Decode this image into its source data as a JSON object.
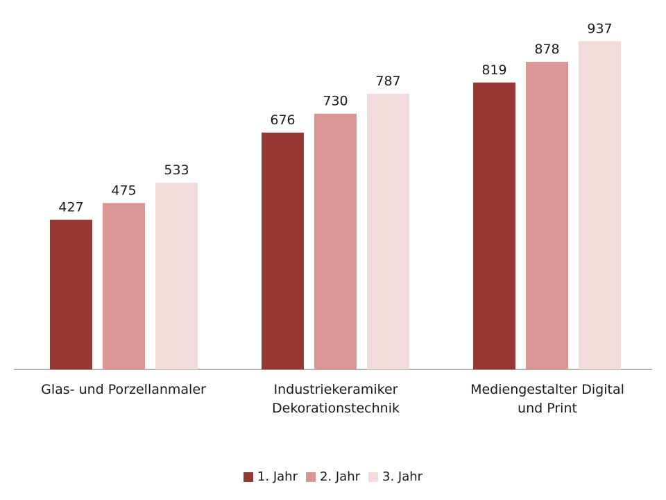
{
  "chart_data": {
    "type": "bar",
    "categories": [
      "Glas- und Porzellanmaler",
      "Industriekeramiker Dekorationstechnik",
      "Mediengestalter Digital und Print"
    ],
    "category_lines": [
      [
        "Glas- und Porzellanmaler"
      ],
      [
        "Industriekeramiker",
        "Dekorationstechnik"
      ],
      [
        "Mediengestalter Digital",
        "und Print"
      ]
    ],
    "series": [
      {
        "name": "1. Jahr",
        "values": [
          427,
          676,
          819
        ],
        "color": "#953735"
      },
      {
        "name": "2. Jahr",
        "values": [
          475,
          730,
          878
        ],
        "color": "#d99694"
      },
      {
        "name": "3. Jahr",
        "values": [
          533,
          787,
          937
        ],
        "color": "#f2dcdb"
      }
    ],
    "title": "",
    "xlabel": "",
    "ylabel": "",
    "ylim": [
      0,
      1000
    ],
    "grid": false,
    "legend_position": "bottom",
    "data_labels": true
  }
}
